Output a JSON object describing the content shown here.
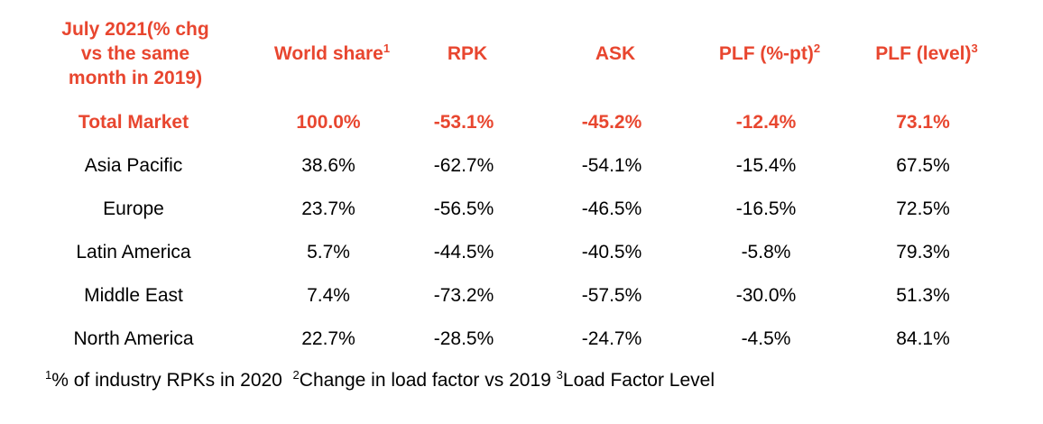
{
  "header": {
    "period_line1": "July 2021(% chg",
    "period_line2": "vs the same",
    "period_line3": "month in 2019)",
    "world_share": "World share",
    "world_share_sup": "1",
    "rpk": "RPK",
    "ask": "ASK",
    "plf_pt": "PLF (%-pt)",
    "plf_pt_sup": "2",
    "plf_level": "PLF (level)",
    "plf_level_sup": "3"
  },
  "total": {
    "region": "Total Market",
    "world_share": "100.0%",
    "rpk": "-53.1%",
    "ask": "-45.2%",
    "plf_pt": "-12.4%",
    "plf_level": "73.1%"
  },
  "rows": [
    {
      "region": "Asia Pacific",
      "world_share": "38.6%",
      "rpk": "-62.7%",
      "ask": "-54.1%",
      "plf_pt": "-15.4%",
      "plf_level": "67.5%"
    },
    {
      "region": "Europe",
      "world_share": "23.7%",
      "rpk": "-56.5%",
      "ask": "-46.5%",
      "plf_pt": "-16.5%",
      "plf_level": "72.5%"
    },
    {
      "region": "Latin America",
      "world_share": "5.7%",
      "rpk": "-44.5%",
      "ask": "-40.5%",
      "plf_pt": "-5.8%",
      "plf_level": "79.3%"
    },
    {
      "region": "Middle East",
      "world_share": "7.4%",
      "rpk": "-73.2%",
      "ask": "-57.5%",
      "plf_pt": "-30.0%",
      "plf_level": "51.3%"
    },
    {
      "region": "North America",
      "world_share": "22.7%",
      "rpk": "-28.5%",
      "ask": "-24.7%",
      "plf_pt": "-4.5%",
      "plf_level": "84.1%"
    }
  ],
  "footnotes": {
    "n1_mark": "1",
    "n1_text": "% of industry RPKs in 2020",
    "n2_mark": "2",
    "n2_text": "Change in load factor vs 2019",
    "n3_mark": "3",
    "n3_text": "Load Factor Level"
  },
  "colors": {
    "accent": "#e8462f",
    "text": "#000000",
    "background": "#ffffff"
  }
}
